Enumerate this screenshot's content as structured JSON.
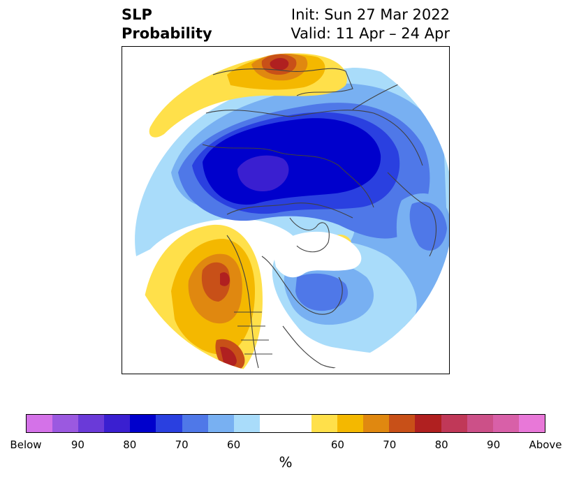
{
  "title": {
    "left_line1": "SLP",
    "left_line2": "Probability",
    "right_line1": "Init: Sun 27 Mar 2022",
    "right_line2": "Valid: 11 Apr – 24 Apr"
  },
  "colorbar": {
    "unit": "%",
    "colors": [
      "#d472e8",
      "#9b59e0",
      "#6a3ad8",
      "#3a1fd0",
      "#0000cc",
      "#2a40e0",
      "#4f78e8",
      "#78b0f2",
      "#a9dcfa",
      "#ffffff",
      "#ffffff",
      "#ffe04a",
      "#f4b800",
      "#e08810",
      "#c85018",
      "#b02020",
      "#c03858",
      "#cc5088",
      "#d860a8",
      "#e878d8"
    ],
    "ticks": [
      "Below",
      "90",
      "80",
      "70",
      "60",
      "60",
      "70",
      "80",
      "90",
      "Above"
    ]
  },
  "map": {
    "projection": "north-polar-stereographic",
    "below_colors": {
      "c1": "#a9dcfa",
      "c2": "#78b0f2",
      "c3": "#4f78e8",
      "c4": "#2a40e0",
      "c5": "#0000cc",
      "c6": "#3a1fd0"
    },
    "above_colors": {
      "c1": "#ffe04a",
      "c2": "#f4b800",
      "c3": "#e08810",
      "c4": "#c85018",
      "c5": "#b02020"
    },
    "coastline_color": "#404040"
  }
}
